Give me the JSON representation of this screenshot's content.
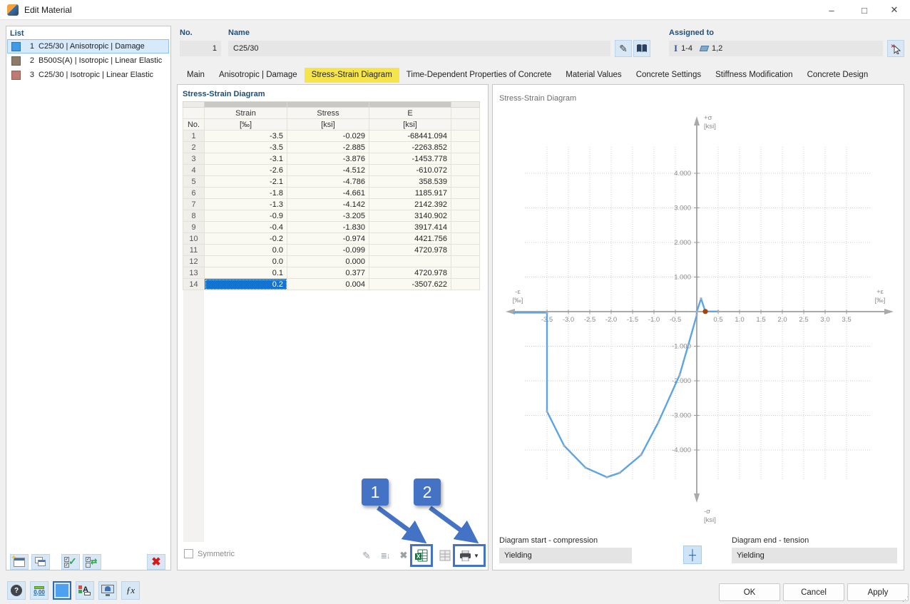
{
  "window": {
    "title": "Edit Material"
  },
  "list_panel": {
    "title": "List",
    "items": [
      {
        "num": "1",
        "label": "C25/30 | Anisotropic | Damage",
        "swatch": "#3D9BE9",
        "selected": true
      },
      {
        "num": "2",
        "label": "B500S(A) | Isotropic | Linear Elastic",
        "swatch": "#8D7C69",
        "selected": false
      },
      {
        "num": "3",
        "label": "C25/30 | Isotropic | Linear Elastic",
        "swatch": "#BF7B72",
        "selected": false
      }
    ]
  },
  "header_fields": {
    "no_label": "No.",
    "no_value": "1",
    "name_label": "Name",
    "name_value": "C25/30",
    "assigned_label": "Assigned to",
    "assigned_members": "1-4",
    "assigned_surfaces": "1,2"
  },
  "tabs": [
    {
      "label": "Main",
      "active": false
    },
    {
      "label": "Anisotropic | Damage",
      "active": false
    },
    {
      "label": "Stress-Strain Diagram",
      "active": true
    },
    {
      "label": "Time-Dependent Properties of Concrete",
      "active": false
    },
    {
      "label": "Material Values",
      "active": false
    },
    {
      "label": "Concrete Settings",
      "active": false
    },
    {
      "label": "Stiffness Modification",
      "active": false
    },
    {
      "label": "Concrete Design",
      "active": false
    }
  ],
  "table_section": {
    "title": "Stress-Strain Diagram",
    "columns": [
      {
        "name": "No.",
        "unit": ""
      },
      {
        "name": "Strain",
        "unit": "[‰]"
      },
      {
        "name": "Stress",
        "unit": "[ksi]"
      },
      {
        "name": "E",
        "unit": "[ksi]"
      }
    ],
    "rows": [
      {
        "no": "1",
        "strain": "-3.5",
        "stress": "-0.029",
        "e": "-68441.094"
      },
      {
        "no": "2",
        "strain": "-3.5",
        "stress": "-2.885",
        "e": "-2263.852"
      },
      {
        "no": "3",
        "strain": "-3.1",
        "stress": "-3.876",
        "e": "-1453.778"
      },
      {
        "no": "4",
        "strain": "-2.6",
        "stress": "-4.512",
        "e": "-610.072"
      },
      {
        "no": "5",
        "strain": "-2.1",
        "stress": "-4.786",
        "e": "358.539"
      },
      {
        "no": "6",
        "strain": "-1.8",
        "stress": "-4.661",
        "e": "1185.917"
      },
      {
        "no": "7",
        "strain": "-1.3",
        "stress": "-4.142",
        "e": "2142.392"
      },
      {
        "no": "8",
        "strain": "-0.9",
        "stress": "-3.205",
        "e": "3140.902"
      },
      {
        "no": "9",
        "strain": "-0.4",
        "stress": "-1.830",
        "e": "3917.414"
      },
      {
        "no": "10",
        "strain": "-0.2",
        "stress": "-0.974",
        "e": "4421.756"
      },
      {
        "no": "11",
        "strain": "0.0",
        "stress": "-0.099",
        "e": "4720.978"
      },
      {
        "no": "12",
        "strain": "0.0",
        "stress": "0.000",
        "e": ""
      },
      {
        "no": "13",
        "strain": "0.1",
        "stress": "0.377",
        "e": "4720.978"
      },
      {
        "no": "14",
        "strain": "0.2",
        "stress": "0.004",
        "e": "-3507.622",
        "selected": "strain"
      }
    ],
    "symmetric_label": "Symmetric"
  },
  "chart_section": {
    "panel_title": "Stress-Strain Diagram",
    "start_label": "Diagram start - compression",
    "start_value": "Yielding",
    "end_label": "Diagram end - tension",
    "end_value": "Yielding"
  },
  "chart_data": {
    "type": "line",
    "title": "Stress-Strain Diagram",
    "x_axis": {
      "label_neg": "-ε",
      "label_pos": "+ε",
      "unit": "[‰]",
      "tick_values": [
        -3.5,
        -3.0,
        -2.5,
        -2.0,
        -1.5,
        -1.0,
        -0.5,
        0.5,
        1.0,
        1.5,
        2.0,
        2.5,
        3.0,
        3.5
      ],
      "tick_labels": [
        "-3.5",
        "-3.0",
        "-2.5",
        "-2.0",
        "-1.5",
        "-1.0",
        "-0.5",
        "0.5",
        "1.0",
        "1.5",
        "2.0",
        "2.5",
        "3.0",
        "3.5"
      ]
    },
    "y_axis": {
      "label_pos": "+σ",
      "label_neg": "-σ",
      "unit": "[ksi]",
      "tick_values": [
        4,
        3,
        2,
        1,
        -1,
        -2,
        -3,
        -4
      ],
      "tick_labels": [
        "4.000",
        "3.000",
        "2.000",
        "1.000",
        "-1.000",
        "-2.000",
        "-3.000",
        "-4.000"
      ]
    },
    "series": [
      {
        "name": "stress-strain-curve",
        "color": "#5BA4E6",
        "points": [
          [
            -3.5,
            -0.029
          ],
          [
            -3.5,
            -2.885
          ],
          [
            -3.1,
            -3.876
          ],
          [
            -2.6,
            -4.512
          ],
          [
            -2.1,
            -4.786
          ],
          [
            -1.8,
            -4.661
          ],
          [
            -1.3,
            -4.142
          ],
          [
            -0.9,
            -3.205
          ],
          [
            -0.4,
            -1.83
          ],
          [
            -0.2,
            -0.974
          ],
          [
            0.0,
            -0.099
          ],
          [
            0.0,
            0.0
          ],
          [
            0.1,
            0.377
          ],
          [
            0.2,
            0.004
          ]
        ]
      }
    ],
    "yield_extension_left": {
      "stress": -0.029,
      "to_strain": -3.5
    },
    "yield_extension_right": {
      "stress": 0.004,
      "from_strain": 0.2,
      "to_strain": 0.5
    },
    "highlight_point": {
      "x": 0.2,
      "y": 0.004,
      "color": "#A84300"
    },
    "grid": true,
    "legend": "none"
  },
  "annotations": {
    "badge1": "1",
    "badge2": "2"
  },
  "footer": {
    "ok": "OK",
    "cancel": "Cancel",
    "apply": "Apply"
  }
}
